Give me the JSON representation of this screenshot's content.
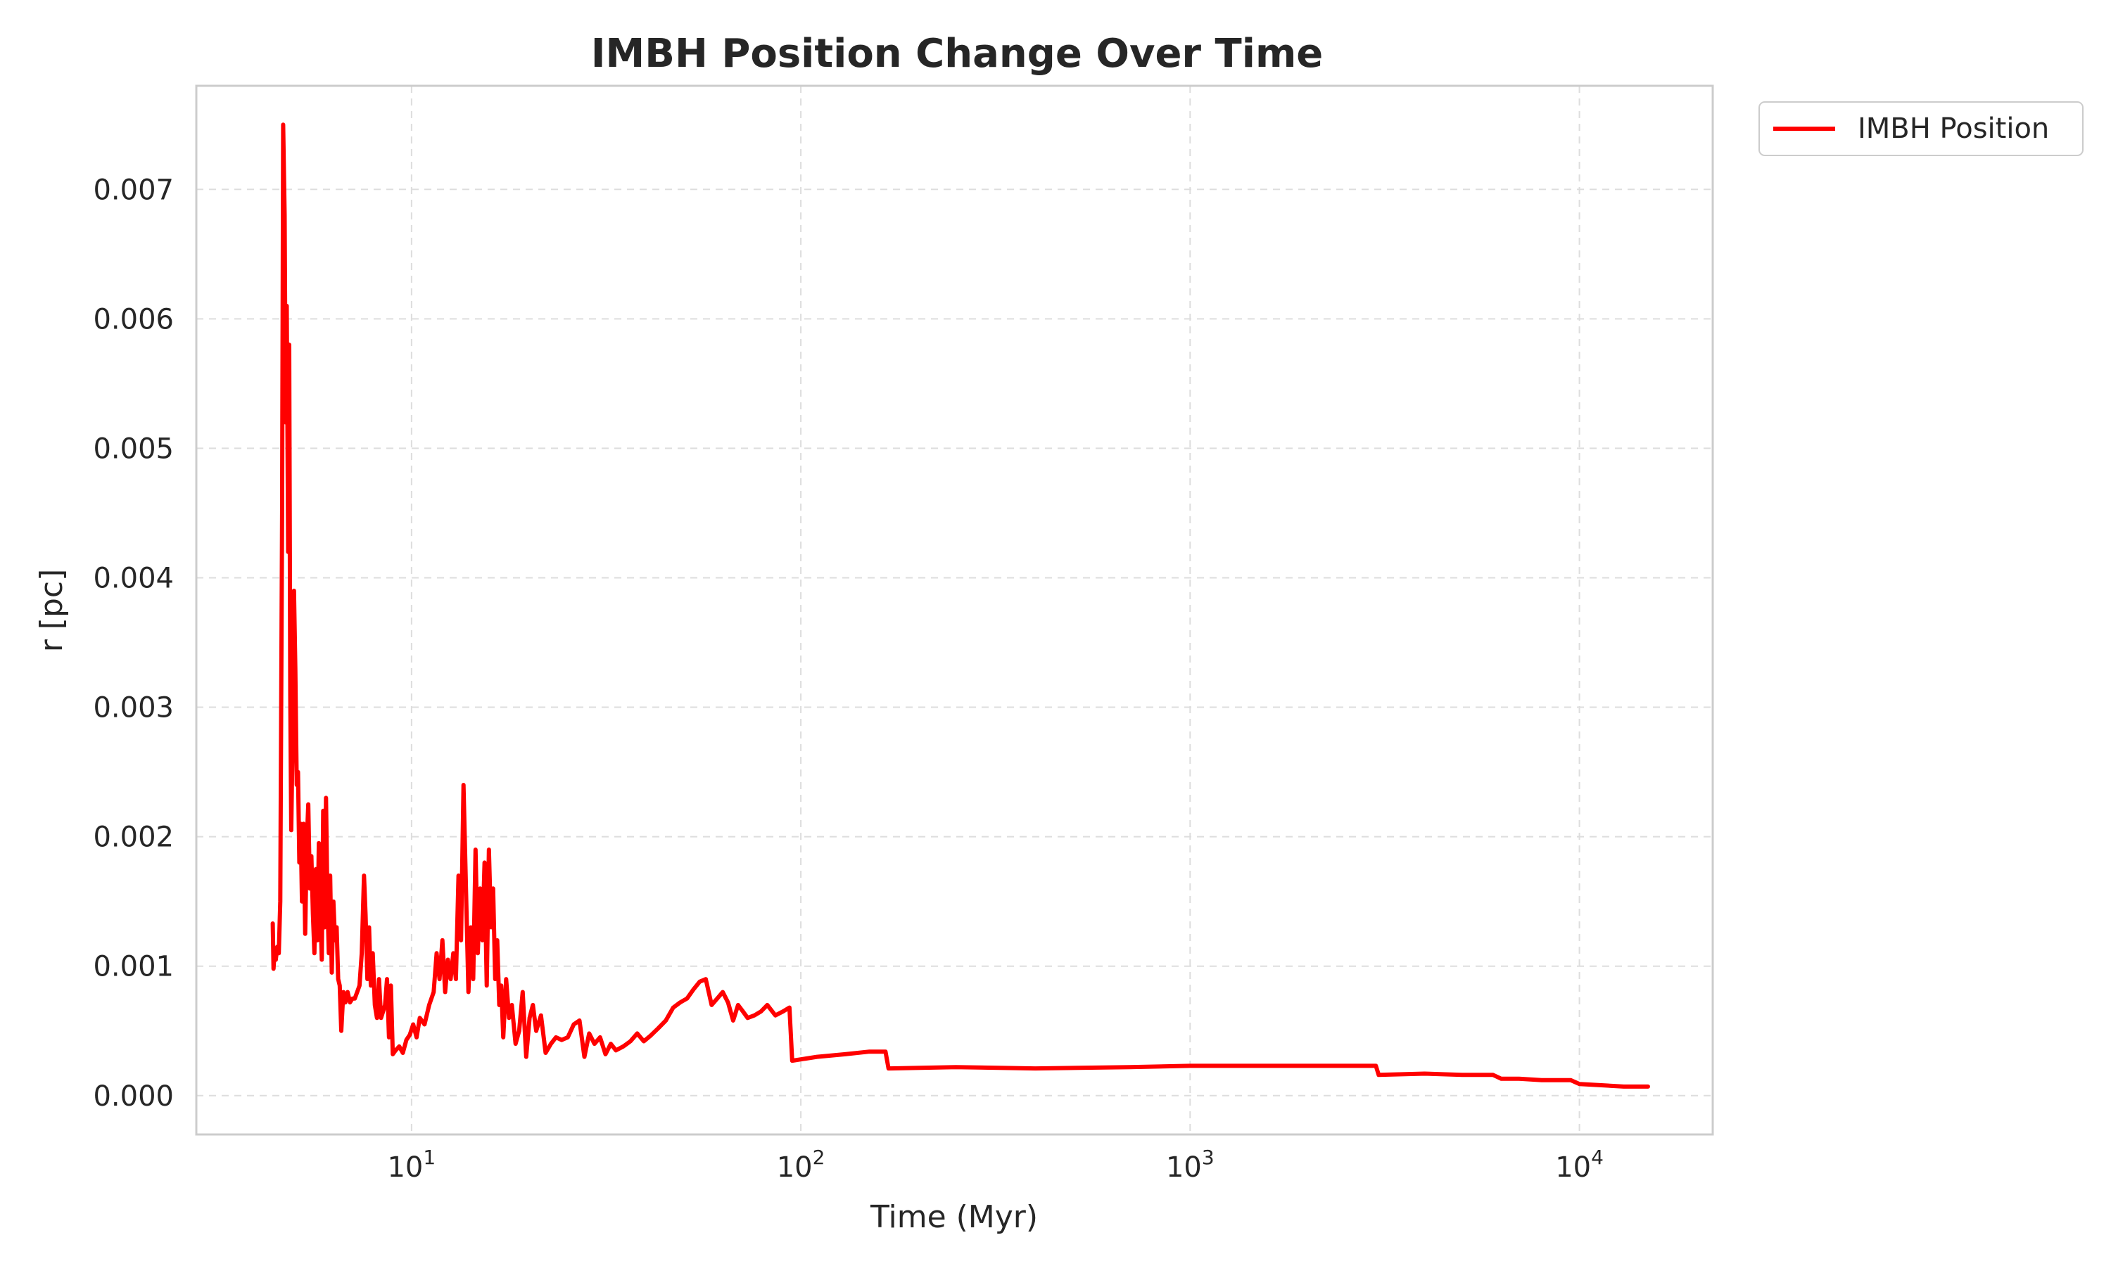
{
  "chart_data": {
    "type": "line",
    "title": "IMBH Position Change Over Time",
    "xlabel": "Time (Myr)",
    "ylabel": "r [pc]",
    "xscale": "log",
    "xlim": [
      2.8,
      22000
    ],
    "ylim": [
      -0.0003,
      0.0078
    ],
    "x_ticks": [
      {
        "value": 10,
        "base": "10",
        "exp": "1"
      },
      {
        "value": 100,
        "base": "10",
        "exp": "2"
      },
      {
        "value": 1000,
        "base": "10",
        "exp": "3"
      },
      {
        "value": 10000,
        "base": "10",
        "exp": "4"
      }
    ],
    "y_ticks": [
      {
        "value": 0.0,
        "label": "0.000"
      },
      {
        "value": 0.001,
        "label": "0.001"
      },
      {
        "value": 0.002,
        "label": "0.002"
      },
      {
        "value": 0.003,
        "label": "0.003"
      },
      {
        "value": 0.004,
        "label": "0.004"
      },
      {
        "value": 0.005,
        "label": "0.005"
      },
      {
        "value": 0.006,
        "label": "0.006"
      },
      {
        "value": 0.007,
        "label": "0.007"
      }
    ],
    "grid": true,
    "legend_position": "outside-top-right",
    "series": [
      {
        "name": "IMBH Position",
        "color": "#ff0000",
        "points": [
          [
            4.4,
            0.00133
          ],
          [
            4.42,
            0.00098
          ],
          [
            4.45,
            0.00112
          ],
          [
            4.48,
            0.00105
          ],
          [
            4.52,
            0.00115
          ],
          [
            4.56,
            0.0011
          ],
          [
            4.6,
            0.0015
          ],
          [
            4.65,
            0.0045
          ],
          [
            4.68,
            0.0075
          ],
          [
            4.72,
            0.0068
          ],
          [
            4.75,
            0.0052
          ],
          [
            4.78,
            0.0061
          ],
          [
            4.82,
            0.0042
          ],
          [
            4.85,
            0.0058
          ],
          [
            4.88,
            0.0031
          ],
          [
            4.91,
            0.00205
          ],
          [
            4.95,
            0.0028
          ],
          [
            4.99,
            0.0039
          ],
          [
            5.03,
            0.0033
          ],
          [
            5.07,
            0.0024
          ],
          [
            5.11,
            0.0025
          ],
          [
            5.15,
            0.0018
          ],
          [
            5.19,
            0.0021
          ],
          [
            5.23,
            0.0015
          ],
          [
            5.28,
            0.0021
          ],
          [
            5.33,
            0.00125
          ],
          [
            5.38,
            0.00195
          ],
          [
            5.43,
            0.00225
          ],
          [
            5.48,
            0.0016
          ],
          [
            5.53,
            0.00185
          ],
          [
            5.58,
            0.0014
          ],
          [
            5.63,
            0.0011
          ],
          [
            5.68,
            0.00175
          ],
          [
            5.73,
            0.0012
          ],
          [
            5.78,
            0.00195
          ],
          [
            5.83,
            0.00145
          ],
          [
            5.88,
            0.00105
          ],
          [
            5.93,
            0.0022
          ],
          [
            5.98,
            0.0013
          ],
          [
            6.03,
            0.0023
          ],
          [
            6.08,
            0.0015
          ],
          [
            6.13,
            0.0011
          ],
          [
            6.18,
            0.0017
          ],
          [
            6.24,
            0.00095
          ],
          [
            6.3,
            0.0015
          ],
          [
            6.36,
            0.0012
          ],
          [
            6.42,
            0.0013
          ],
          [
            6.48,
            0.0009
          ],
          [
            6.54,
            0.00085
          ],
          [
            6.6,
            0.0005
          ],
          [
            6.68,
            0.0008
          ],
          [
            6.76,
            0.00072
          ],
          [
            6.85,
            0.0008
          ],
          [
            6.95,
            0.00072
          ],
          [
            7.05,
            0.00075
          ],
          [
            7.15,
            0.00075
          ],
          [
            7.25,
            0.0008
          ],
          [
            7.35,
            0.00085
          ],
          [
            7.45,
            0.0011
          ],
          [
            7.55,
            0.0017
          ],
          [
            7.62,
            0.0014
          ],
          [
            7.7,
            0.0009
          ],
          [
            7.78,
            0.0013
          ],
          [
            7.86,
            0.00085
          ],
          [
            7.95,
            0.0011
          ],
          [
            8.05,
            0.0007
          ],
          [
            8.15,
            0.0006
          ],
          [
            8.25,
            0.0009
          ],
          [
            8.35,
            0.0006
          ],
          [
            8.45,
            0.00065
          ],
          [
            8.55,
            0.0007
          ],
          [
            8.65,
            0.0009
          ],
          [
            8.75,
            0.00045
          ],
          [
            8.85,
            0.00085
          ],
          [
            8.95,
            0.00032
          ],
          [
            9.1,
            0.00035
          ],
          [
            9.3,
            0.00038
          ],
          [
            9.5,
            0.00033
          ],
          [
            9.7,
            0.00043
          ],
          [
            9.9,
            0.00047
          ],
          [
            10.1,
            0.00055
          ],
          [
            10.3,
            0.00045
          ],
          [
            10.5,
            0.0006
          ],
          [
            10.8,
            0.00055
          ],
          [
            11.1,
            0.0007
          ],
          [
            11.4,
            0.0008
          ],
          [
            11.6,
            0.0011
          ],
          [
            11.8,
            0.0009
          ],
          [
            12.0,
            0.0012
          ],
          [
            12.2,
            0.0008
          ],
          [
            12.4,
            0.00105
          ],
          [
            12.6,
            0.0009
          ],
          [
            12.8,
            0.0011
          ],
          [
            13.0,
            0.0009
          ],
          [
            13.2,
            0.0017
          ],
          [
            13.4,
            0.0012
          ],
          [
            13.6,
            0.0024
          ],
          [
            13.8,
            0.0016
          ],
          [
            14.0,
            0.0008
          ],
          [
            14.2,
            0.0013
          ],
          [
            14.4,
            0.0009
          ],
          [
            14.6,
            0.0019
          ],
          [
            14.8,
            0.0011
          ],
          [
            15.0,
            0.0016
          ],
          [
            15.2,
            0.0012
          ],
          [
            15.4,
            0.0018
          ],
          [
            15.6,
            0.00085
          ],
          [
            15.8,
            0.0019
          ],
          [
            16.0,
            0.0013
          ],
          [
            16.2,
            0.0016
          ],
          [
            16.4,
            0.0009
          ],
          [
            16.6,
            0.0012
          ],
          [
            16.8,
            0.0007
          ],
          [
            17.0,
            0.00085
          ],
          [
            17.2,
            0.00045
          ],
          [
            17.5,
            0.0009
          ],
          [
            17.8,
            0.0006
          ],
          [
            18.1,
            0.0007
          ],
          [
            18.5,
            0.0004
          ],
          [
            18.9,
            0.0005
          ],
          [
            19.3,
            0.0008
          ],
          [
            19.7,
            0.0003
          ],
          [
            20.1,
            0.0006
          ],
          [
            20.5,
            0.0007
          ],
          [
            20.9,
            0.0005
          ],
          [
            21.5,
            0.00062
          ],
          [
            22.1,
            0.00033
          ],
          [
            22.8,
            0.0004
          ],
          [
            23.5,
            0.00045
          ],
          [
            24.3,
            0.00043
          ],
          [
            25.2,
            0.00045
          ],
          [
            26.1,
            0.00055
          ],
          [
            27.0,
            0.00058
          ],
          [
            27.8,
            0.0003
          ],
          [
            28.6,
            0.00048
          ],
          [
            29.5,
            0.0004
          ],
          [
            30.5,
            0.00045
          ],
          [
            31.5,
            0.00032
          ],
          [
            32.5,
            0.0004
          ],
          [
            33.5,
            0.00035
          ],
          [
            35.0,
            0.00038
          ],
          [
            36.5,
            0.00042
          ],
          [
            38.0,
            0.00048
          ],
          [
            39.5,
            0.00042
          ],
          [
            41.0,
            0.00046
          ],
          [
            43.0,
            0.00052
          ],
          [
            45.0,
            0.00058
          ],
          [
            47.0,
            0.00068
          ],
          [
            49.0,
            0.00072
          ],
          [
            51.0,
            0.00075
          ],
          [
            53.0,
            0.00082
          ],
          [
            55.0,
            0.00088
          ],
          [
            57.0,
            0.0009
          ],
          [
            59.0,
            0.0007
          ],
          [
            61.0,
            0.00075
          ],
          [
            63.0,
            0.0008
          ],
          [
            65.0,
            0.00072
          ],
          [
            67.0,
            0.00058
          ],
          [
            69.0,
            0.0007
          ],
          [
            71.0,
            0.00065
          ],
          [
            73.0,
            0.0006
          ],
          [
            76.0,
            0.00062
          ],
          [
            79.0,
            0.00065
          ],
          [
            82.0,
            0.0007
          ],
          [
            86.0,
            0.00062
          ],
          [
            90.0,
            0.00065
          ],
          [
            93.5,
            0.00068
          ],
          [
            95.0,
            0.00027
          ],
          [
            110,
            0.0003
          ],
          [
            130,
            0.00032
          ],
          [
            150,
            0.00034
          ],
          [
            165,
            0.00034
          ],
          [
            168,
            0.00021
          ],
          [
            250,
            0.00022
          ],
          [
            400,
            0.00021
          ],
          [
            700,
            0.00022
          ],
          [
            1000,
            0.00023
          ],
          [
            2000,
            0.00023
          ],
          [
            3000,
            0.00023
          ],
          [
            3050,
            0.00016
          ],
          [
            4000,
            0.00017
          ],
          [
            5000,
            0.00016
          ],
          [
            6000,
            0.00016
          ],
          [
            6300,
            0.00013
          ],
          [
            7000,
            0.00013
          ],
          [
            8000,
            0.00012
          ],
          [
            9500,
            0.00012
          ],
          [
            10000,
            9e-05
          ],
          [
            11500,
            8e-05
          ],
          [
            13000,
            7e-05
          ],
          [
            15000,
            7e-05
          ]
        ]
      }
    ]
  }
}
